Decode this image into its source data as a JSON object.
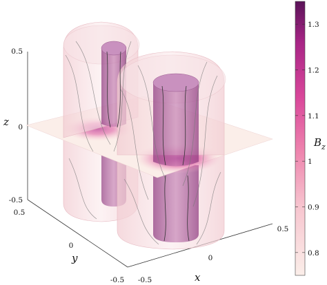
{
  "chart_data": {
    "type": "heatmap",
    "description_type": "3d-surface-with-isosurfaces",
    "axes": {
      "x": {
        "label": "x",
        "ticks": [
          "-0.5",
          "0",
          "0.5"
        ],
        "range": [
          -0.5,
          0.5
        ]
      },
      "y": {
        "label": "y",
        "ticks": [
          "-0.5",
          "0",
          "0.5"
        ],
        "range": [
          -0.5,
          0.5
        ]
      },
      "z": {
        "label": "z",
        "ticks": [
          "-0.5",
          "0",
          "0.5"
        ],
        "range": [
          -0.5,
          0.5
        ]
      }
    },
    "colorbar": {
      "label": "B",
      "label_subscript": "z",
      "range": [
        0.75,
        1.35
      ],
      "ticks": [
        "1.3",
        "1.2",
        "1.1",
        "1",
        "0.9",
        "0.8"
      ],
      "tick_values": [
        1.3,
        1.2,
        1.1,
        1.0,
        0.9,
        0.8
      ],
      "colormap": [
        "#fbeee9",
        "#f7c5cf",
        "#ee85ae",
        "#d9479a",
        "#a82586",
        "#5a1358"
      ]
    },
    "tubes": [
      {
        "name": "tube-1",
        "center_xy": [
          -0.15,
          0.15
        ],
        "outer_color": "#f6d7da",
        "inner_color": "#b4679e"
      },
      {
        "name": "tube-2",
        "center_xy": [
          0.15,
          -0.15
        ],
        "outer_color": "#f6d7da",
        "inner_color": "#b4679e"
      }
    ],
    "midplane": {
      "z": 0,
      "peak_value": 1.22
    }
  }
}
